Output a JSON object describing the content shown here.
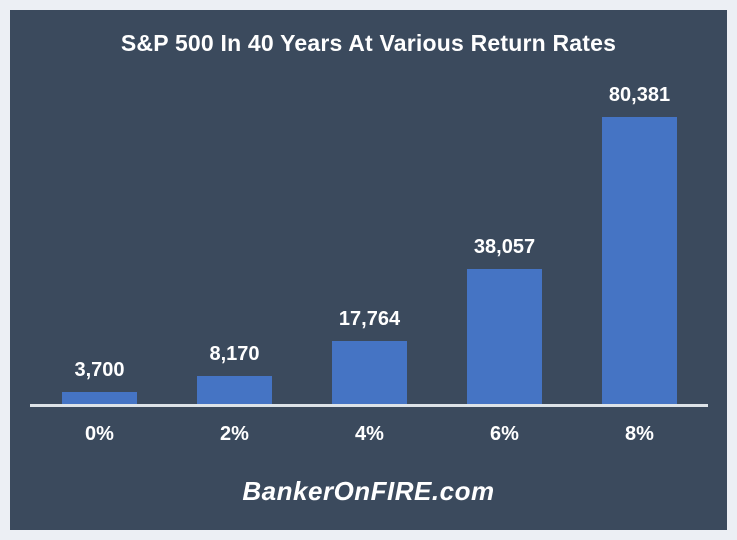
{
  "frame": {
    "border_color": "#ECEFF4",
    "background_color": "#3B4A5D"
  },
  "chart_data": {
    "type": "bar",
    "title": "S&P 500 In 40 Years At Various Return Rates",
    "categories": [
      "0%",
      "2%",
      "4%",
      "6%",
      "8%"
    ],
    "values": [
      3700,
      8170,
      17764,
      38057,
      80381
    ],
    "value_labels": [
      "3,700",
      "8,170",
      "17,764",
      "38,057",
      "80,381"
    ],
    "xlabel": "",
    "ylabel": "",
    "ylim": [
      0,
      80381
    ],
    "grid": false,
    "legend": "none",
    "bar_color": "#4574C4",
    "axis_line_color": "#DDE3E8",
    "text_color": "#FFFFFF"
  },
  "watermark": {
    "text": "BankerOnFIRE.com"
  }
}
